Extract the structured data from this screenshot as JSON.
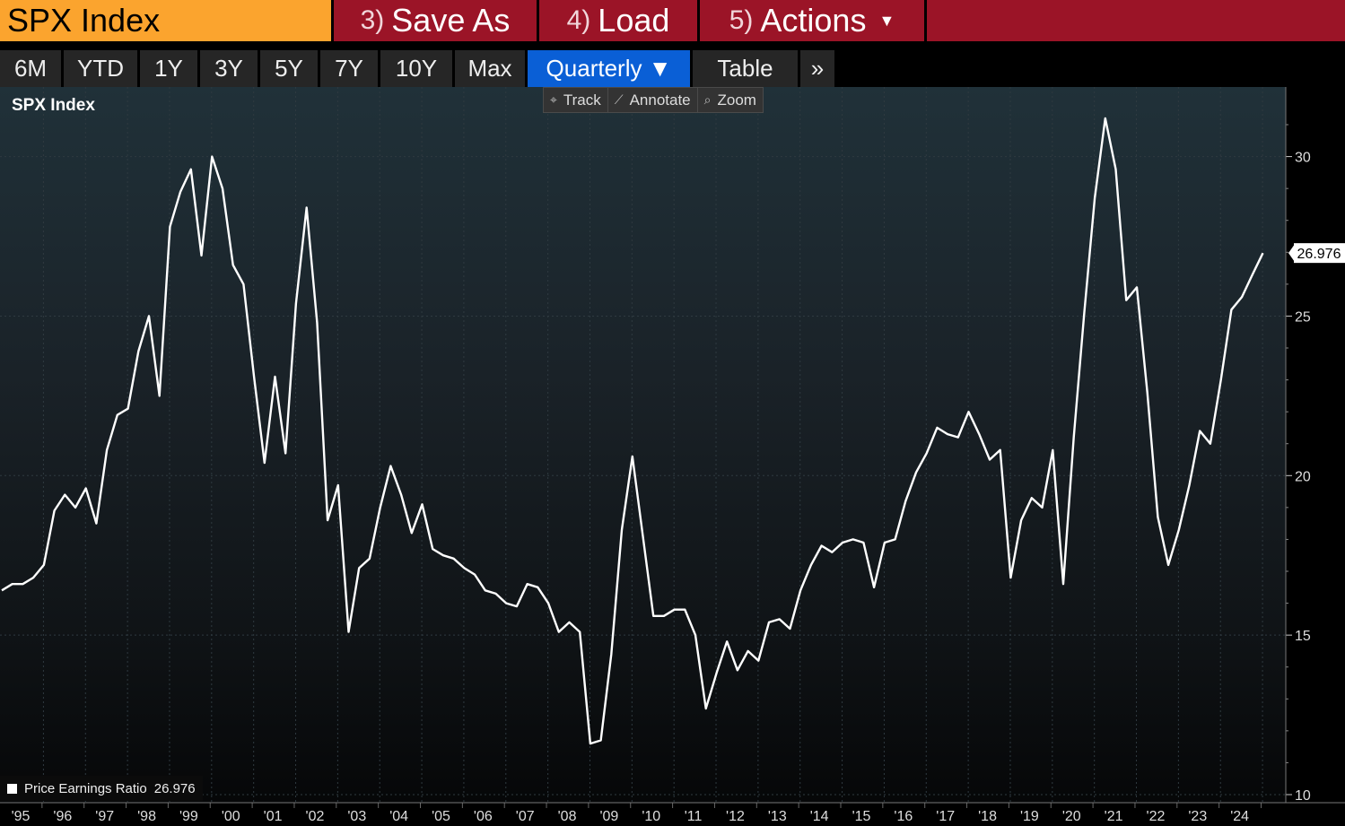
{
  "toolbar": {
    "security": "SPX Index",
    "save_as": {
      "num": "3)",
      "label": "Save As"
    },
    "load": {
      "num": "4)",
      "label": "Load"
    },
    "actions": {
      "num": "5)",
      "label": "Actions",
      "caret": "▼"
    }
  },
  "ranges": [
    {
      "label": "6M"
    },
    {
      "label": "YTD"
    },
    {
      "label": "1Y"
    },
    {
      "label": "3Y"
    },
    {
      "label": "5Y"
    },
    {
      "label": "7Y"
    },
    {
      "label": "10Y"
    },
    {
      "label": "Max"
    },
    {
      "label": "Quarterly ▼"
    },
    {
      "label": "Table"
    },
    {
      "label": "»"
    }
  ],
  "chart_tools": [
    {
      "icon": "crosshair-icon",
      "glyph": "⌖",
      "label": "Track"
    },
    {
      "icon": "pencil-icon",
      "glyph": "⟋",
      "label": "Annotate"
    },
    {
      "icon": "magnifier-icon",
      "glyph": "⌕",
      "label": "Zoom"
    }
  ],
  "chart_data": {
    "type": "line",
    "title": "SPX Index",
    "series": [
      {
        "name": "Price Earnings Ratio",
        "last_value": "26.976",
        "color": "#ffffff",
        "values": [
          16.4,
          16.6,
          16.6,
          16.8,
          17.2,
          18.9,
          19.4,
          19.0,
          19.6,
          18.5,
          20.8,
          21.9,
          22.1,
          23.9,
          25.0,
          22.5,
          27.8,
          28.9,
          29.6,
          26.9,
          30.0,
          29.0,
          26.6,
          26.0,
          23.1,
          20.4,
          23.1,
          20.7,
          25.4,
          28.4,
          24.8,
          18.6,
          19.7,
          15.1,
          17.1,
          17.4,
          19.0,
          20.3,
          19.4,
          18.2,
          19.1,
          17.7,
          17.5,
          17.4,
          17.1,
          16.9,
          16.4,
          16.3,
          16.0,
          15.9,
          16.6,
          16.5,
          16.0,
          15.1,
          15.4,
          15.1,
          11.6,
          11.7,
          14.4,
          18.3,
          20.6,
          18.1,
          15.6,
          15.6,
          15.8,
          15.8,
          15.0,
          12.7,
          13.8,
          14.8,
          13.9,
          14.5,
          14.2,
          15.4,
          15.5,
          15.2,
          16.4,
          17.2,
          17.8,
          17.6,
          17.9,
          18.0,
          17.9,
          16.5,
          17.9,
          18.0,
          19.2,
          20.1,
          20.7,
          21.5,
          21.3,
          21.2,
          22.0,
          21.3,
          20.5,
          20.8,
          16.8,
          18.6,
          19.3,
          19.0,
          20.8,
          16.6,
          21.2,
          25.1,
          28.7,
          31.2,
          29.6,
          25.5,
          25.9,
          22.6,
          18.7,
          17.2,
          18.3,
          19.7,
          21.4,
          21.0,
          23.0,
          25.2,
          25.6,
          26.3,
          26.976
        ]
      }
    ],
    "x_start_year": 1995,
    "periods_per_year": 4,
    "x_ticks": [
      "'95",
      "'96",
      "'97",
      "'98",
      "'99",
      "'00",
      "'01",
      "'02",
      "'03",
      "'04",
      "'05",
      "'06",
      "'07",
      "'08",
      "'09",
      "'10",
      "'11",
      "'12",
      "'13",
      "'14",
      "'15",
      "'16",
      "'17",
      "'18",
      "'19",
      "'20",
      "'21",
      "'22",
      "'23",
      "'24"
    ],
    "y_ticks": [
      10,
      15,
      20,
      25,
      30
    ],
    "y_range": [
      10,
      31.9
    ],
    "y_axis_position": "right",
    "grid": true,
    "legend": "bottom-left",
    "last_value_label": "26.976"
  }
}
